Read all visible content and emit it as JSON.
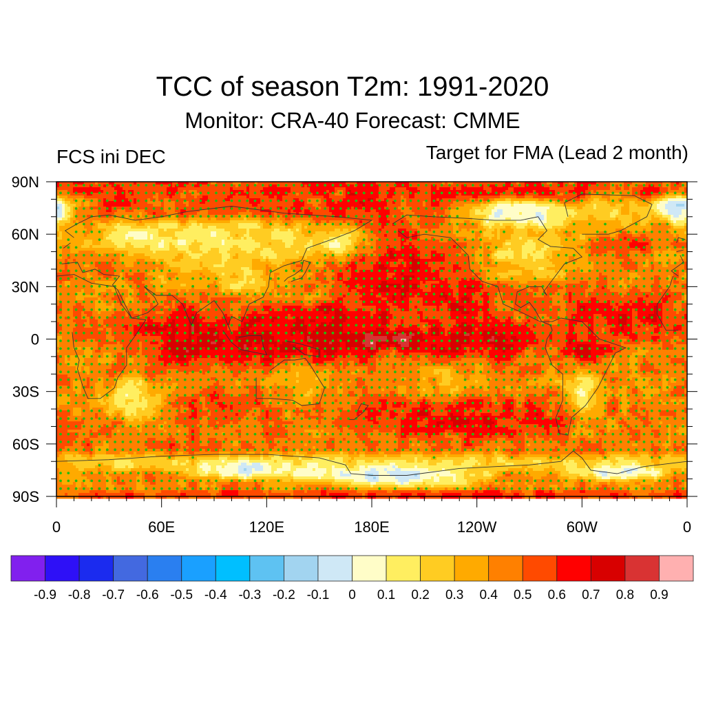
{
  "title": "TCC of season T2m: 1991-2020",
  "subtitle": "Monitor: CRA-40   Forecast: CMME",
  "left_label": "FCS ini DEC",
  "right_label": "Target for FMA (Lead 2 month)",
  "map": {
    "projection": "cylindrical-equidistant",
    "lon_range": [
      0,
      360
    ],
    "lat_range": [
      -90,
      90
    ],
    "lat_ticks": [
      {
        "lat": 90,
        "label": "90N"
      },
      {
        "lat": 60,
        "label": "60N"
      },
      {
        "lat": 30,
        "label": "30N"
      },
      {
        "lat": 0,
        "label": "0"
      },
      {
        "lat": -30,
        "label": "30S"
      },
      {
        "lat": -60,
        "label": "60S"
      },
      {
        "lat": -90,
        "label": "90S"
      }
    ],
    "lon_ticks": [
      {
        "lon": 0,
        "label": "0"
      },
      {
        "lon": 60,
        "label": "60E"
      },
      {
        "lon": 120,
        "label": "120E"
      },
      {
        "lon": 180,
        "label": "180E"
      },
      {
        "lon": 240,
        "label": "120W"
      },
      {
        "lon": 300,
        "label": "60W"
      },
      {
        "lon": 360,
        "label": "0"
      }
    ],
    "minor_tick_spacing_deg": 10,
    "stipple_color": "#22bb11",
    "stipple_threshold": 0.35,
    "coastline_color": "#333333",
    "background_value": 0.45,
    "features": [
      {
        "name": "arctic-ocean-band",
        "lon": 180,
        "lat": 86,
        "rlon": 220,
        "rlat": 5,
        "value": 0.62
      },
      {
        "name": "barents-kara",
        "lon": 70,
        "lat": 76,
        "rlon": 40,
        "rlat": 6,
        "value": 0.6
      },
      {
        "name": "east-siberian-sea",
        "lon": 160,
        "lat": 75,
        "rlon": 35,
        "rlat": 6,
        "value": 0.65
      },
      {
        "name": "north-atlantic-greenland-sea",
        "lon": 355,
        "lat": 75,
        "rlon": 10,
        "rlat": 6,
        "value": -0.25
      },
      {
        "name": "northern-eurasia",
        "lon": 70,
        "lat": 58,
        "rlon": 40,
        "rlat": 8,
        "value": 0.08
      },
      {
        "name": "central-siberia",
        "lon": 110,
        "lat": 55,
        "rlon": 25,
        "rlat": 10,
        "value": 0.15
      },
      {
        "name": "central-asia",
        "lon": 85,
        "lat": 40,
        "rlon": 20,
        "rlat": 8,
        "value": 0.25
      },
      {
        "name": "mongolia-china",
        "lon": 105,
        "lat": 35,
        "rlon": 10,
        "rlat": 6,
        "value": 0.12
      },
      {
        "name": "okhotsk-kamchatka",
        "lon": 160,
        "lat": 55,
        "rlon": 15,
        "rlat": 7,
        "value": 0.1
      },
      {
        "name": "north-pacific",
        "lon": 200,
        "lat": 38,
        "rlon": 30,
        "rlat": 15,
        "value": 0.72
      },
      {
        "name": "northeast-pacific",
        "lon": 230,
        "lat": 20,
        "rlon": 15,
        "rlat": 12,
        "value": 0.72
      },
      {
        "name": "canadian-archipelago",
        "lon": 265,
        "lat": 72,
        "rlon": 20,
        "rlat": 6,
        "value": -0.15
      },
      {
        "name": "north-america-interior",
        "lon": 265,
        "lat": 50,
        "rlon": 22,
        "rlat": 12,
        "value": 0.18
      },
      {
        "name": "greenland",
        "lon": 318,
        "lat": 72,
        "rlon": 15,
        "rlat": 8,
        "value": 0.18
      },
      {
        "name": "north-atlantic-subpolar",
        "lon": 330,
        "lat": 55,
        "rlon": 12,
        "rlat": 5,
        "value": 0.62
      },
      {
        "name": "tropical-atlantic",
        "lon": 320,
        "lat": 12,
        "rlon": 28,
        "rlat": 10,
        "value": 0.7
      },
      {
        "name": "indian-ocean-tropics",
        "lon": 80,
        "lat": 0,
        "rlon": 25,
        "rlat": 12,
        "value": 0.78
      },
      {
        "name": "maritime-continent",
        "lon": 120,
        "lat": 0,
        "rlon": 15,
        "rlat": 10,
        "value": 0.75
      },
      {
        "name": "tropical-pacific-west",
        "lon": 160,
        "lat": 3,
        "rlon": 25,
        "rlat": 12,
        "value": 0.82
      },
      {
        "name": "nino34-core",
        "lon": 190,
        "lat": 0,
        "rlon": 22,
        "rlat": 4,
        "value": 0.93
      },
      {
        "name": "tropical-pacific-east",
        "lon": 240,
        "lat": 0,
        "rlon": 25,
        "rlat": 8,
        "value": 0.8
      },
      {
        "name": "amazon-north",
        "lon": 300,
        "lat": -5,
        "rlon": 10,
        "rlat": 6,
        "value": 0.75
      },
      {
        "name": "south-america-south",
        "lon": 300,
        "lat": -30,
        "rlon": 8,
        "rlat": 10,
        "value": 0.1
      },
      {
        "name": "southern-africa-south-indian",
        "lon": 45,
        "lat": -35,
        "rlon": 12,
        "rlat": 8,
        "value": 0.05
      },
      {
        "name": "south-indian-ocean",
        "lon": 90,
        "lat": -40,
        "rlon": 25,
        "rlat": 8,
        "value": 0.6
      },
      {
        "name": "australia",
        "lon": 135,
        "lat": -25,
        "rlon": 12,
        "rlat": 8,
        "value": 0.35
      },
      {
        "name": "south-pacific",
        "lon": 230,
        "lat": -45,
        "rlon": 40,
        "rlat": 8,
        "value": 0.72
      },
      {
        "name": "south-pacific-subtropics",
        "lon": 215,
        "lat": -25,
        "rlon": 20,
        "rlat": 6,
        "value": 0.3
      },
      {
        "name": "southern-ocean-band",
        "lon": 180,
        "lat": -60,
        "rlon": 200,
        "rlat": 5,
        "value": 0.5
      },
      {
        "name": "antarctic-coast",
        "lon": 180,
        "lat": -70,
        "rlon": 200,
        "rlat": 4,
        "value": 0.15
      },
      {
        "name": "ross-sea-ice",
        "lon": 190,
        "lat": -78,
        "rlon": 35,
        "rlat": 5,
        "value": -0.2
      },
      {
        "name": "weddell-ice",
        "lon": 320,
        "lat": -76,
        "rlon": 20,
        "rlat": 4,
        "value": -0.15
      },
      {
        "name": "east-antarctica",
        "lon": 110,
        "lat": -75,
        "rlon": 25,
        "rlat": 5,
        "value": -0.1
      },
      {
        "name": "antarctic-interior",
        "lon": 60,
        "lat": -83,
        "rlon": 80,
        "rlat": 4,
        "value": 0.45
      },
      {
        "name": "south-pole-rim",
        "lon": 180,
        "lat": -89,
        "rlon": 200,
        "rlat": 2,
        "value": 0.62
      }
    ]
  },
  "colorbar": {
    "levels": [
      -0.9,
      -0.8,
      -0.7,
      -0.6,
      -0.5,
      -0.4,
      -0.3,
      -0.2,
      -0.1,
      0,
      0.1,
      0.2,
      0.3,
      0.4,
      0.5,
      0.6,
      0.7,
      0.8,
      0.9
    ],
    "labels": [
      "-0.9",
      "-0.8",
      "-0.7",
      "-0.6",
      "-0.5",
      "-0.4",
      "-0.3",
      "-0.2",
      "-0.1",
      "0",
      "0.1",
      "0.2",
      "0.3",
      "0.4",
      "0.5",
      "0.6",
      "0.7",
      "0.8",
      "0.9"
    ],
    "colors": [
      "#8120ee",
      "#2e10f7",
      "#1b2bef",
      "#4369e0",
      "#2a7ff0",
      "#1aa0ff",
      "#00bfff",
      "#5ec2f2",
      "#a2d4f0",
      "#cfe8f6",
      "#fffdc8",
      "#ffee60",
      "#ffcc22",
      "#ffaa00",
      "#ff8000",
      "#ff4a00",
      "#ff0000",
      "#d80000",
      "#d93333",
      "#ffb0b0"
    ]
  }
}
